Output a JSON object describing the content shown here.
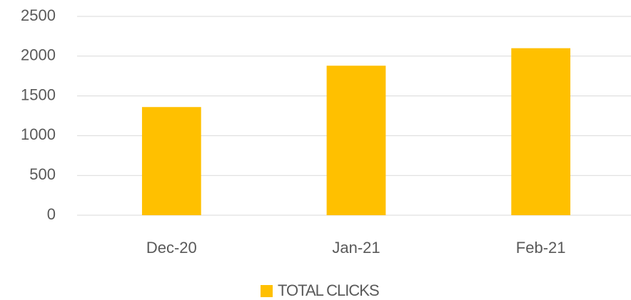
{
  "chart_data": {
    "type": "bar",
    "categories": [
      "Dec-20",
      "Jan-21",
      "Feb-21"
    ],
    "series": [
      {
        "name": "TOTAL CLICKS",
        "color": "#ffc000",
        "values": [
          1360,
          1880,
          2100
        ]
      }
    ],
    "ylim": [
      0,
      2500
    ],
    "yticks": [
      0,
      500,
      1000,
      1500,
      2000,
      2500
    ],
    "grid": true,
    "legend": "bottom"
  }
}
